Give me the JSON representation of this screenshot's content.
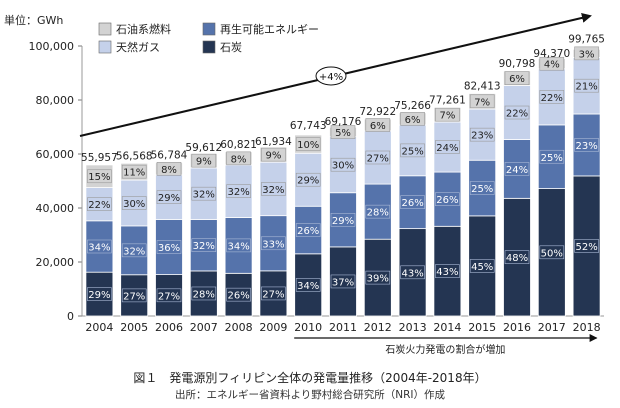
{
  "chart_data": {
    "type": "bar",
    "stacked": true,
    "unit_label": "単位：GWh",
    "categories": [
      "2004",
      "2005",
      "2006",
      "2007",
      "2008",
      "2009",
      "2010",
      "2011",
      "2012",
      "2013",
      "2014",
      "2015",
      "2016",
      "2017",
      "2018"
    ],
    "totals": [
      55957,
      56568,
      56784,
      59612,
      60821,
      61934,
      67743,
      69176,
      72922,
      75266,
      77261,
      82413,
      90798,
      94370,
      99765
    ],
    "totals_labels": [
      "55,957",
      "56,568",
      "56,784",
      "59,612",
      "60,821",
      "61,934",
      "67,743",
      "69,176",
      "72,922",
      "75,266",
      "77,261",
      "82,413",
      "90,798",
      "94,370",
      "99,765"
    ],
    "series": [
      {
        "name": "石炭",
        "color": "#243552",
        "label_color": "#ffffff",
        "shares": [
          29,
          27,
          27,
          28,
          26,
          27,
          34,
          37,
          39,
          43,
          43,
          45,
          48,
          50,
          52
        ]
      },
      {
        "name": "再生可能エネルギー",
        "color": "#5573ab",
        "label_color": "#ffffff",
        "shares": [
          34,
          32,
          36,
          32,
          34,
          33,
          26,
          29,
          28,
          26,
          26,
          25,
          24,
          25,
          23
        ]
      },
      {
        "name": "天然ガス",
        "color": "#c5d1ea",
        "label_color": "#222222",
        "shares": [
          22,
          30,
          29,
          32,
          32,
          32,
          29,
          30,
          27,
          25,
          24,
          23,
          22,
          22,
          21
        ]
      },
      {
        "name": "石油系燃料",
        "color": "#d3d3d3",
        "label_color": "#222222",
        "shares": [
          15,
          11,
          8,
          9,
          8,
          9,
          10,
          5,
          6,
          6,
          7,
          7,
          6,
          4,
          3
        ]
      }
    ],
    "y_axis": {
      "min": 0,
      "max": 100000,
      "ticks": [
        "0",
        "20,000",
        "40,000",
        "60,000",
        "80,000",
        "100,000"
      ]
    },
    "growth_annotation": "+4%",
    "coal_arrow_label": "石炭火力発電の割合が増加",
    "grid": false,
    "legend_position": "top-left"
  },
  "caption": {
    "title": "図１　発電源別フィリピン全体の発電量推移（2004年-2018年）",
    "source": "出所：エネルギー省資料より野村総合研究所（NRI）作成"
  }
}
